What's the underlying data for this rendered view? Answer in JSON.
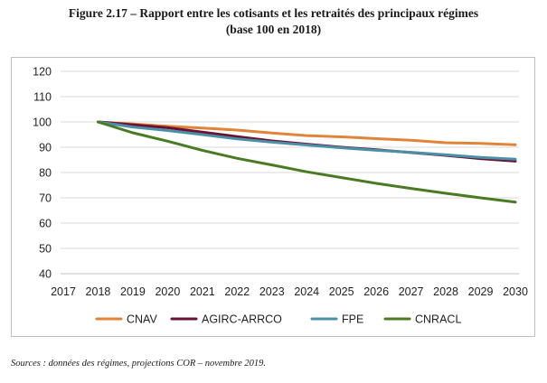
{
  "figure": {
    "title_line1": "Figure 2.17 – Rapport entre les cotisants et les retraités des principaux régimes",
    "title_line2": "(base 100 en 2018)"
  },
  "source_note": "Sources : données des régimes, projections COR – novembre 2019.",
  "chart_data": {
    "type": "line",
    "title": "",
    "xlabel": "",
    "ylabel": "",
    "x": [
      2017,
      2018,
      2019,
      2020,
      2021,
      2022,
      2023,
      2024,
      2025,
      2026,
      2027,
      2028,
      2029,
      2030
    ],
    "ylim": [
      40,
      120
    ],
    "yticks": [
      40,
      50,
      60,
      70,
      80,
      90,
      100,
      110,
      120
    ],
    "grid": true,
    "legend_position": "bottom",
    "series": [
      {
        "name": "CNAV",
        "color": "#e0843a",
        "values": [
          null,
          100,
          99.2,
          98.3,
          97.6,
          96.8,
          95.6,
          94.6,
          94.1,
          93.4,
          92.8,
          91.8,
          91.5,
          91.0
        ]
      },
      {
        "name": "AGIRC-ARRCO",
        "color": "#6b1133",
        "values": [
          null,
          100,
          98.9,
          97.7,
          96.0,
          94.2,
          92.5,
          91.2,
          90.0,
          89.0,
          87.9,
          86.8,
          85.5,
          84.5
        ]
      },
      {
        "name": "FPE",
        "color": "#4a91a8",
        "values": [
          null,
          100,
          98.0,
          96.6,
          95.0,
          93.3,
          92.0,
          90.9,
          89.8,
          88.8,
          88.0,
          87.0,
          86.0,
          85.3
        ]
      },
      {
        "name": "CNRACL",
        "color": "#4a7b23",
        "values": [
          null,
          100,
          95.7,
          92.4,
          88.8,
          85.6,
          83.0,
          80.3,
          78.0,
          75.7,
          73.7,
          71.8,
          70.0,
          68.3
        ]
      }
    ]
  }
}
